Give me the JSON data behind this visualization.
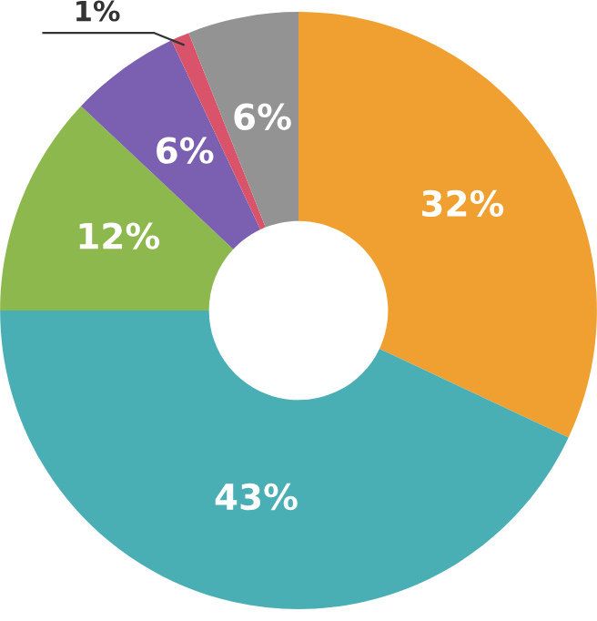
{
  "chart_data": {
    "type": "donut",
    "categories": [
      null,
      null,
      null,
      null,
      null,
      null
    ],
    "values": [
      32,
      43,
      12,
      6,
      1,
      6
    ],
    "colors": [
      "#f0a030",
      "#4aafb5",
      "#8db84e",
      "#7b5fb0",
      "#d9546a",
      "#939393"
    ],
    "value_labels": [
      "32%",
      "43%",
      "12%",
      "6%",
      "1%",
      "6%"
    ]
  }
}
